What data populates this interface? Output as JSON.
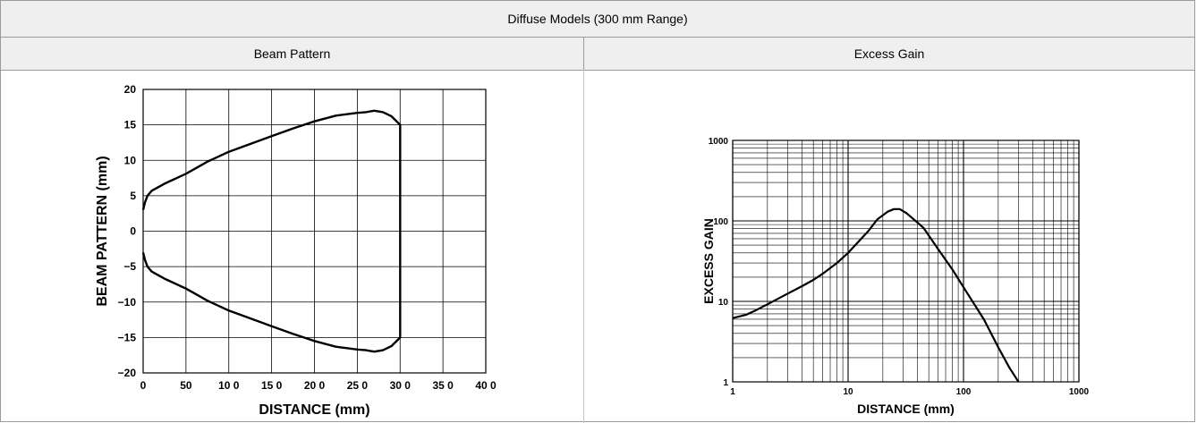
{
  "table": {
    "title": "Diffuse Models (300 mm Range)",
    "left_header": "Beam Pattern",
    "right_header": "Excess Gain"
  },
  "chart_data": [
    {
      "type": "line",
      "xlabel": "DISTANCE (mm)",
      "ylabel": "BEAM PATTERN (mm)",
      "xlim": [
        0,
        400
      ],
      "ylim": [
        -20,
        20
      ],
      "xticks": [
        0,
        50,
        100,
        150,
        200,
        250,
        300,
        350,
        400
      ],
      "yticks": [
        -20,
        -15,
        -10,
        -5,
        0,
        5,
        10,
        15,
        20
      ],
      "xtick_labels": [
        "0",
        "50",
        "10 0",
        "15 0",
        "20 0",
        "25 0",
        "30 0",
        "35 0",
        "40 0"
      ],
      "ytick_labels": [
        "−20",
        "−15",
        "−10",
        "−5",
        "0",
        "5",
        "10",
        "15",
        "20"
      ],
      "grid": true,
      "color": "#000000",
      "series": [
        {
          "x": [
            0,
            2,
            5,
            10,
            25,
            50,
            75,
            100,
            125,
            150,
            175,
            200,
            225,
            250,
            260,
            265,
            270,
            280,
            290,
            300,
            300,
            290,
            280,
            270,
            265,
            260,
            250,
            225,
            200,
            175,
            150,
            125,
            100,
            75,
            50,
            25,
            10,
            5,
            2,
            0
          ],
          "y": [
            3,
            4,
            5,
            5.7,
            6.7,
            8.1,
            9.8,
            11.2,
            12.3,
            13.4,
            14.5,
            15.5,
            16.3,
            16.7,
            16.8,
            16.9,
            17.0,
            16.8,
            16.2,
            15,
            -15,
            -16.2,
            -16.8,
            -17.0,
            -16.9,
            -16.8,
            -16.7,
            -16.3,
            -15.5,
            -14.5,
            -13.4,
            -12.3,
            -11.2,
            -9.8,
            -8.1,
            -6.7,
            -5.7,
            -5,
            -4,
            -3
          ]
        }
      ]
    },
    {
      "type": "line",
      "xscale": "log",
      "yscale": "log",
      "xlabel": "DISTANCE (mm)",
      "ylabel": "EXCESS GAIN",
      "xlim": [
        1,
        1000
      ],
      "ylim": [
        1,
        1000
      ],
      "xticks": [
        1,
        10,
        100,
        1000
      ],
      "yticks": [
        1,
        10,
        100,
        1000
      ],
      "xtick_labels": [
        "1",
        "10",
        "100",
        "1000"
      ],
      "ytick_labels": [
        "1",
        "10",
        "100",
        "1000"
      ],
      "grid": true,
      "color": "#000000",
      "series": [
        {
          "x": [
            1,
            1.3,
            1.6,
            2,
            3,
            4,
            5,
            6,
            8,
            10,
            12,
            15,
            18,
            22,
            25,
            28,
            32,
            40,
            45,
            60,
            80,
            100,
            150,
            200,
            250,
            300
          ],
          "y": [
            6.2,
            6.8,
            7.8,
            9.2,
            12.5,
            15.5,
            18.5,
            22,
            30,
            40,
            53,
            75,
            105,
            130,
            140,
            140,
            125,
            95,
            82,
            45,
            25,
            15,
            6,
            2.7,
            1.5,
            1.0
          ]
        }
      ]
    }
  ]
}
